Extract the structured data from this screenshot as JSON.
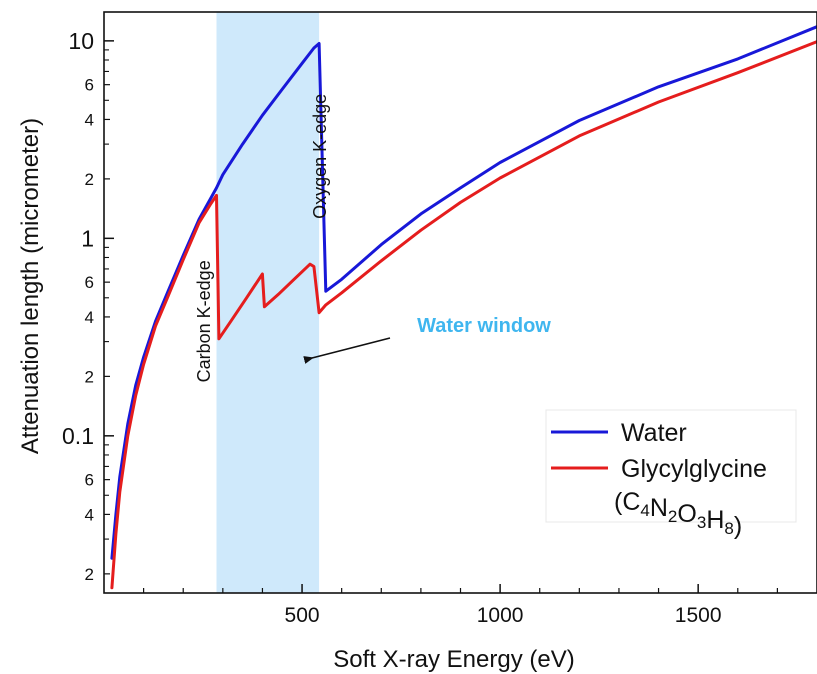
{
  "chart_data": {
    "type": "line",
    "xlabel": "Soft X-ray Energy (eV)",
    "ylabel": "Attenuation length (micrometer)",
    "xlim": [
      0,
      1800
    ],
    "ylim": [
      0.016,
      14
    ],
    "y_scale": "log",
    "grid": false,
    "legend_position": "bottom-right",
    "x_ticks": [
      {
        "value": 500,
        "label": "500"
      },
      {
        "value": 1000,
        "label": "1000"
      },
      {
        "value": 1500,
        "label": "1500"
      }
    ],
    "y_major_ticks": [
      {
        "value": 10,
        "label": "10"
      },
      {
        "value": 1,
        "label": "1"
      },
      {
        "value": 0.1,
        "label": "0.1"
      }
    ],
    "y_minor_ticks": [
      {
        "value": 6,
        "label": "6"
      },
      {
        "value": 4,
        "label": "4"
      },
      {
        "value": 2,
        "label": "2"
      },
      {
        "value": 0.6,
        "label": "6"
      },
      {
        "value": 0.4,
        "label": "4"
      },
      {
        "value": 0.2,
        "label": "2"
      },
      {
        "value": 0.06,
        "label": "6"
      },
      {
        "value": 0.04,
        "label": "4"
      },
      {
        "value": 0.02,
        "label": "2"
      }
    ],
    "water_window": {
      "x_start": 284,
      "x_end": 543,
      "color": "#cfe9fb",
      "label": "Water window",
      "label_color": "#3fb6ef"
    },
    "annotations": [
      {
        "text": "Carbon K-edge",
        "x": 267,
        "y": 0.38
      },
      {
        "text": "Oxygen K-edge",
        "x": 561,
        "y": 2.6
      }
    ],
    "series": [
      {
        "name": "Water",
        "color": "#1818d8",
        "x": [
          20,
          30,
          40,
          60,
          80,
          100,
          130,
          160,
          200,
          240,
          270,
          284,
          300,
          350,
          400,
          450,
          500,
          530,
          543,
          560,
          600,
          700,
          800,
          900,
          1000,
          1200,
          1400,
          1600,
          1800
        ],
        "y": [
          0.024,
          0.04,
          0.062,
          0.115,
          0.18,
          0.25,
          0.38,
          0.53,
          0.82,
          1.25,
          1.6,
          1.8,
          2.1,
          3.0,
          4.2,
          5.7,
          7.7,
          9.2,
          9.7,
          0.54,
          0.62,
          0.93,
          1.33,
          1.8,
          2.42,
          3.95,
          5.85,
          8.1,
          11.8
        ]
      },
      {
        "name": "Glycylglycine",
        "color": "#e51d1d",
        "x": [
          20,
          30,
          40,
          60,
          80,
          100,
          130,
          160,
          200,
          240,
          270,
          284,
          290,
          320,
          360,
          400,
          405,
          440,
          480,
          520,
          530,
          543,
          560,
          600,
          700,
          800,
          900,
          1000,
          1200,
          1400,
          1600,
          1800
        ],
        "y": [
          0.017,
          0.032,
          0.052,
          0.1,
          0.16,
          0.23,
          0.36,
          0.5,
          0.78,
          1.2,
          1.5,
          1.65,
          0.31,
          0.38,
          0.5,
          0.66,
          0.45,
          0.52,
          0.62,
          0.74,
          0.72,
          0.42,
          0.46,
          0.53,
          0.77,
          1.1,
          1.52,
          2.02,
          3.3,
          4.9,
          6.9,
          9.9
        ]
      }
    ],
    "legend": {
      "entries": [
        {
          "label": "Water",
          "color": "#1818d8"
        },
        {
          "label": "Glycylglycine",
          "color": "#e51d1d"
        }
      ],
      "formula_parts": [
        {
          "text": "(C",
          "sub": false
        },
        {
          "text": "4",
          "sub": true
        },
        {
          "text": "N",
          "sub": false
        },
        {
          "text": "2",
          "sub": true
        },
        {
          "text": "O",
          "sub": false
        },
        {
          "text": "3",
          "sub": true
        },
        {
          "text": "H",
          "sub": false
        },
        {
          "text": "8",
          "sub": true
        },
        {
          "text": ")",
          "sub": false
        }
      ]
    }
  }
}
